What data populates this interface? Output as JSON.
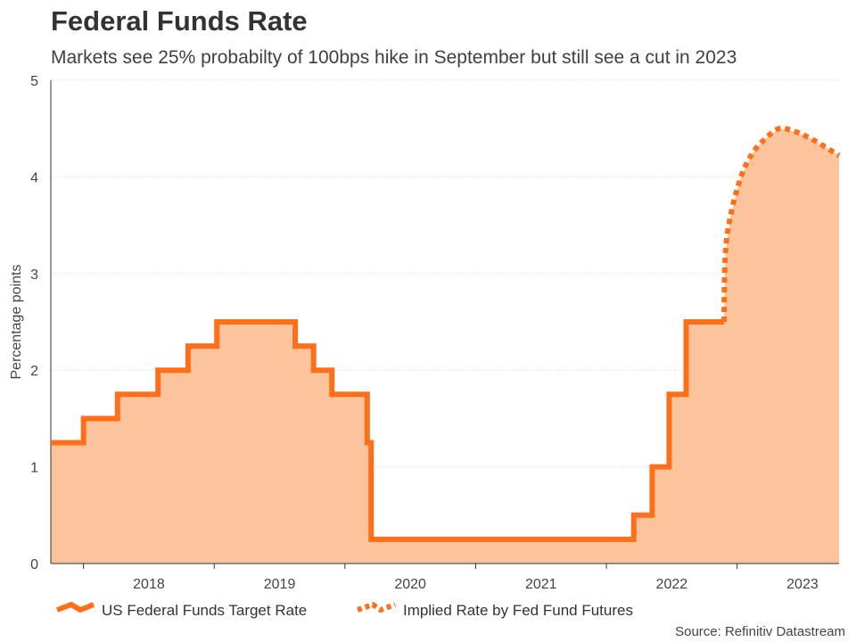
{
  "chart_data": {
    "type": "line",
    "title": "Federal Funds Rate",
    "subtitle": "Markets see 25% probabilty of 100bps hike in September but still see a cut in 2023",
    "ylabel": "Percentage points",
    "xlabel": "",
    "source": "Source: Refinitiv Datastream",
    "ylim": [
      0,
      5
    ],
    "xlim": [
      2017.25,
      2023.28
    ],
    "yticks": [
      "0",
      "1",
      "2",
      "3",
      "4",
      "5"
    ],
    "ytick_values": [
      0,
      1,
      2,
      3,
      4,
      5
    ],
    "xticks": [
      "2018",
      "2019",
      "2020",
      "2021",
      "2022",
      "2023"
    ],
    "xtick_values": [
      2017.5,
      2018.5,
      2019.5,
      2020.5,
      2021.5,
      2022.5
    ],
    "xlabel_positions": [
      2018,
      2019,
      2020,
      2021,
      2022,
      2023
    ],
    "grid": true,
    "fill_color": "#fcc49c",
    "line_color": "#ff6f1a",
    "series": [
      {
        "name": "US Federal Funds Target Rate",
        "style": "step",
        "x": [
          2017.25,
          2017.5,
          2017.76,
          2018.07,
          2018.3,
          2018.52,
          2019.12,
          2019.26,
          2019.4,
          2019.67,
          2019.7,
          2019.71,
          2021.71,
          2021.85,
          2021.98,
          2022.11,
          2022.27
        ],
        "values": [
          1.25,
          1.5,
          1.75,
          2.0,
          2.25,
          2.5,
          2.25,
          2.0,
          1.75,
          1.25,
          0.25,
          0.25,
          0.5,
          1.0,
          1.75,
          2.5,
          2.5
        ]
      },
      {
        "name": "Implied Rate by Fed Fund Futures",
        "style": "dotted",
        "x": [
          2022.4,
          2022.41,
          2022.45,
          2022.53,
          2022.62,
          2022.72,
          2022.82,
          2022.92,
          2023.03,
          2023.15,
          2023.28
        ],
        "values": [
          2.5,
          3.2,
          3.6,
          4.0,
          4.25,
          4.4,
          4.5,
          4.48,
          4.42,
          4.33,
          4.22
        ]
      }
    ]
  }
}
